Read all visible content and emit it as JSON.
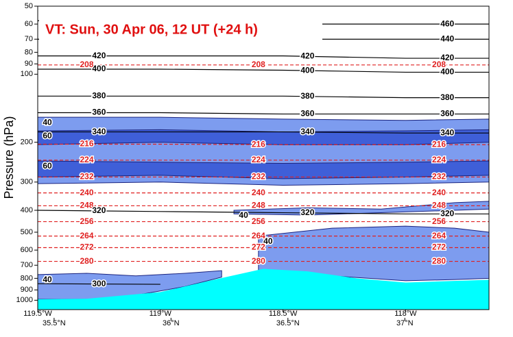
{
  "chart_data": {
    "type": "cross-section",
    "title": "VT:  Sun, 30 Apr 06, 12 UT (+24 h)",
    "ylabel": "Pressure (hPa)",
    "ylog": true,
    "yreversed": true,
    "ylim": [
      50,
      1100
    ],
    "yticks": [
      50,
      60,
      70,
      80,
      90,
      100,
      200,
      300,
      400,
      500,
      600,
      700,
      800,
      900,
      1000
    ],
    "xlim": [
      -119.5,
      -117.66
    ],
    "xticks": [
      {
        "value": -119.5,
        "label": "119.5°W"
      },
      {
        "value": -119,
        "label": "119°W"
      },
      {
        "value": -118.5,
        "label": "118.5°W"
      },
      {
        "value": -118,
        "label": "118°W"
      }
    ],
    "x2lim": [
      35.43,
      37.36
    ],
    "x2ticks": [
      {
        "value": 35.5,
        "label": "35.5°N"
      },
      {
        "value": 36,
        "label": "36°N"
      },
      {
        "value": 36.5,
        "label": "36.5°N"
      },
      {
        "value": 37,
        "label": "37°N"
      }
    ],
    "isotachs": [
      {
        "level": 40,
        "color": "#7d9cef",
        "x": [
          -119.5,
          -119,
          -118.5,
          -118,
          -117.66
        ],
        "top": [
          155,
          155,
          158,
          160,
          158
        ],
        "bottom": [
          305,
          300,
          310,
          305,
          300
        ]
      },
      {
        "level": 60,
        "color": "#3f5fd8",
        "x": [
          -119.5,
          -119,
          -118.5,
          -118,
          -117.66
        ],
        "top": [
          178,
          176,
          180,
          178,
          176
        ],
        "bottom": [
          205,
          200,
          205,
          205,
          200
        ]
      },
      {
        "level": 60,
        "color": "#3f5fd8",
        "x": [
          -119.5,
          -119,
          -118.5,
          -118,
          -117.66
        ],
        "top": [
          242,
          245,
          248,
          245,
          242
        ],
        "bottom": [
          285,
          280,
          290,
          285,
          280
        ]
      },
      {
        "level": 40,
        "color": "#7d9cef",
        "x": [
          -118.7,
          -118.4,
          -118.1,
          -117.8,
          -117.66
        ],
        "top": [
          400,
          390,
          395,
          370,
          365
        ],
        "bottom": [
          415,
          420,
          410,
          400,
          395
        ]
      },
      {
        "level": 40,
        "color": "#7d9cef",
        "x": [
          -118.6,
          -118.3,
          -118.0,
          -117.8,
          -117.66
        ],
        "top": [
          520,
          480,
          470,
          480,
          500
        ],
        "bottom": [
          740,
          780,
          820,
          810,
          800
        ]
      },
      {
        "level": 40,
        "color": "#7d9cef",
        "x": [
          -119.5,
          -119.3,
          -119.1,
          -118.9,
          -118.75
        ],
        "top": [
          770,
          760,
          780,
          760,
          740
        ],
        "bottom": [
          990,
          990,
          950,
          870,
          790
        ]
      }
    ],
    "isotherms": {
      "color": "#e02020",
      "x": [
        -119.5,
        -119,
        -118.5,
        -118,
        -117.66
      ],
      "levels": [
        {
          "level": 208,
          "values": [
            91,
            91,
            91,
            91,
            91
          ]
        },
        {
          "level": 216,
          "values": [
            204,
            204,
            205,
            205,
            205
          ]
        },
        {
          "level": 224,
          "values": [
            240,
            240,
            240,
            240,
            240
          ]
        },
        {
          "level": 232,
          "values": [
            285,
            285,
            285,
            285,
            285
          ]
        },
        {
          "level": 240,
          "values": [
            335,
            335,
            335,
            335,
            335
          ]
        },
        {
          "level": 248,
          "values": [
            382,
            382,
            382,
            382,
            382
          ]
        },
        {
          "level": 256,
          "values": [
            449,
            449,
            449,
            449,
            449
          ]
        },
        {
          "level": 264,
          "values": [
            520,
            520,
            520,
            520,
            520
          ]
        },
        {
          "level": 272,
          "values": [
            585,
            585,
            585,
            585,
            585
          ]
        },
        {
          "level": 280,
          "values": [
            673,
            673,
            673,
            673,
            673
          ]
        }
      ]
    },
    "isentropes": {
      "color": "#000000",
      "x": [
        -119.5,
        -119,
        -118.5,
        -118,
        -117.66
      ],
      "levels": [
        {
          "level": 460,
          "values": [
            58,
            58,
            60,
            60,
            60
          ]
        },
        {
          "level": 440,
          "values": [
            70,
            70,
            70,
            70,
            70
          ]
        },
        {
          "level": 420,
          "values": [
            83,
            83,
            83,
            85,
            85
          ]
        },
        {
          "level": 400,
          "values": [
            95,
            95,
            96,
            98,
            98
          ]
        },
        {
          "level": 380,
          "values": [
            125,
            125,
            125,
            127,
            127
          ]
        },
        {
          "level": 360,
          "values": [
            148,
            148,
            150,
            150,
            150
          ]
        },
        {
          "level": 340,
          "values": [
            180,
            180,
            180,
            182,
            182
          ]
        },
        {
          "level": 320,
          "values": [
            400,
            405,
            410,
            415,
            415
          ]
        },
        {
          "level": 300,
          "values": [
            845,
            850,
            null,
            null,
            null
          ]
        }
      ]
    },
    "terrain": {
      "color": "#00ffff",
      "x": [
        -119.5,
        -119.3,
        -119.0,
        -118.8,
        -118.58,
        -118.4,
        -118.2,
        -118.0,
        -117.66
      ],
      "values": [
        990,
        985,
        920,
        820,
        726,
        745,
        800,
        835,
        812
      ]
    }
  }
}
